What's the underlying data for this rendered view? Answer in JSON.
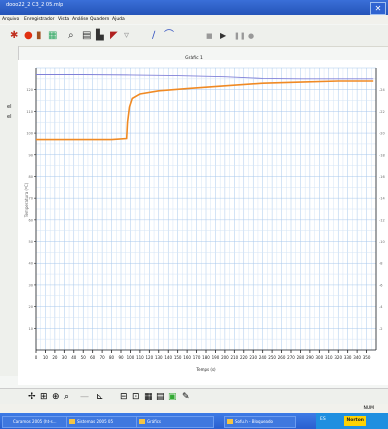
{
  "window": {
    "title": "dooo22_2 C3_2 05.mlp",
    "close_glyph": "✕"
  },
  "menu": [
    "Arquivo",
    "Enregistrador",
    "Vista",
    "Análise",
    "Quadern",
    "Ajuda"
  ],
  "toolbar": {
    "icons": [
      "sensor-icon",
      "record-icon",
      "data-icon",
      "table-icon",
      "zoom-icon",
      "graph-icon",
      "bar-icon",
      "draw-icon",
      "fit-icon",
      "prev-icon",
      "play-icon",
      "stop-icon",
      "next-icon"
    ]
  },
  "graph": {
    "title": "Gràfic 1",
    "y_label_left": "Temperatura (ºC)"
  },
  "left_markers": [
    "el",
    "el"
  ],
  "chart_data": {
    "type": "line",
    "xlabel": "Temps (s)",
    "xlim": [
      0,
      360
    ],
    "x_ticks": [
      "0",
      "10",
      "20",
      "30",
      "40",
      "50",
      "60",
      "70",
      "80",
      "90",
      "100",
      "110",
      "120",
      "130",
      "140",
      "150",
      "160",
      "170",
      "180",
      "190",
      "200",
      "210",
      "220",
      "230",
      "240",
      "250",
      "260",
      "270",
      "280",
      "290",
      "300",
      "310",
      "320",
      "330",
      "340",
      "350"
    ],
    "ylim": [
      0,
      130
    ],
    "y_ticks": [
      "120",
      "110",
      "100",
      "90",
      "80",
      "70",
      "60",
      "50",
      "40",
      "30",
      "20",
      "10"
    ],
    "y_ticks_right": [
      "-24",
      "-22",
      "-20",
      "-18",
      "-16",
      "-14",
      "-12",
      "-10",
      "-8",
      "-6",
      "-4",
      "-2"
    ],
    "grid": true,
    "series": [
      {
        "color": "#f08a24",
        "points": [
          [
            0,
            97
          ],
          [
            20,
            97
          ],
          [
            40,
            97
          ],
          [
            60,
            97
          ],
          [
            80,
            97
          ],
          [
            96,
            97.5
          ],
          [
            97,
            105
          ],
          [
            99,
            112
          ],
          [
            102,
            116
          ],
          [
            110,
            118
          ],
          [
            130,
            119.5
          ],
          [
            160,
            120.5
          ],
          [
            200,
            121.8
          ],
          [
            240,
            123
          ],
          [
            280,
            123.5
          ],
          [
            320,
            124
          ],
          [
            357,
            124
          ]
        ]
      },
      {
        "color": "#8080d8",
        "points": [
          [
            0,
            127
          ],
          [
            50,
            127
          ],
          [
            100,
            126.8
          ],
          [
            150,
            126.5
          ],
          [
            200,
            126
          ],
          [
            240,
            125.2
          ],
          [
            280,
            125
          ],
          [
            320,
            125
          ],
          [
            357,
            125
          ]
        ]
      }
    ]
  },
  "bottom_toolbar": [
    "crosshair-icon",
    "examine-icon",
    "zoom-in-icon",
    "zoom-out-icon",
    "line-icon",
    "fit-icon",
    "stats-icon",
    "integral-icon",
    "table-icon",
    "export-icon",
    "note-icon",
    "draw-icon"
  ],
  "status": {
    "num": "NUM"
  },
  "taskbar": {
    "start": "Caramos 2005 (ht-s...",
    "items": [
      "Sistemas 2005 05",
      "Gráfics",
      "Sofu.h - Bloqueado"
    ],
    "norton": "Norton",
    "tray_text": "ES"
  }
}
